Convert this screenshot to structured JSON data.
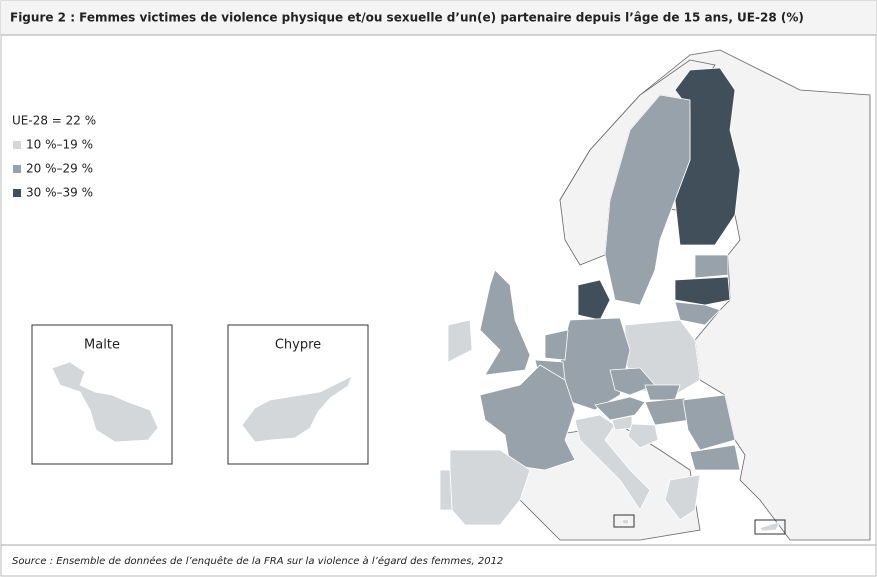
{
  "title": "Figure 2 : Femmes victimes de violence physique et/ou sexuelle d’un(e) partenaire depuis l’âge de 15 ans, UE-28 (%)",
  "legend": {
    "summary": "UE-28 = 22 %",
    "items": [
      {
        "label": "10 %–19 %",
        "color": "#d3d7da"
      },
      {
        "label": "20 %–29 %",
        "color": "#98a2aa"
      },
      {
        "label": "30 %–39 %",
        "color": "#414f5b"
      }
    ]
  },
  "insets": [
    {
      "label": "Malte"
    },
    {
      "label": "Chypre"
    }
  ],
  "source": "Source : Ensemble de données de l’enquête de la FRA sur la violence à l’égard des femmes, 2012"
}
